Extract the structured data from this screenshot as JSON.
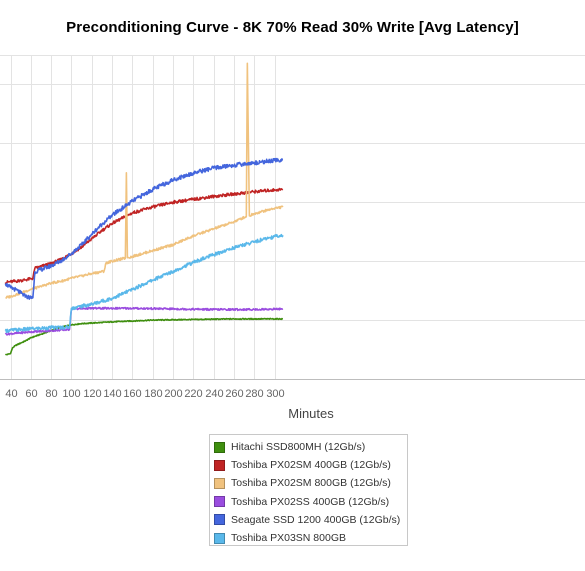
{
  "chart_data": {
    "type": "line",
    "title": "Preconditioning Curve - 8K 70% Read 30% Write [Avg Latency]",
    "xlabel": "Minutes",
    "ylabel": "",
    "xlim": [
      35,
      308
    ],
    "x_ticks": [
      40,
      60,
      80,
      100,
      120,
      140,
      160,
      180,
      200,
      220,
      240,
      260,
      280,
      300
    ],
    "grid": true,
    "legend_position": "bottom",
    "series": [
      {
        "name": "Hitachi SSD800MH (12Gb/s)",
        "color": "#3f8f0f",
        "points": [
          [
            35,
            0.41
          ],
          [
            40,
            0.43
          ],
          [
            42,
            0.53
          ],
          [
            45,
            0.57
          ],
          [
            50,
            0.61
          ],
          [
            55,
            0.65
          ],
          [
            60,
            0.7
          ],
          [
            70,
            0.76
          ],
          [
            80,
            0.82
          ],
          [
            90,
            0.88
          ],
          [
            100,
            0.92
          ],
          [
            110,
            0.94
          ],
          [
            140,
            0.97
          ],
          [
            180,
            1.0
          ],
          [
            220,
            1.01
          ],
          [
            260,
            1.02
          ],
          [
            308,
            1.02
          ]
        ]
      },
      {
        "name": "Toshiba PX02SM 400GB (12Gb/s)",
        "color": "#c02424",
        "points": [
          [
            35,
            1.64
          ],
          [
            40,
            1.65
          ],
          [
            45,
            1.66
          ],
          [
            50,
            1.67
          ],
          [
            60,
            1.7
          ],
          [
            62,
            1.71
          ],
          [
            64,
            1.88
          ],
          [
            70,
            1.91
          ],
          [
            80,
            1.96
          ],
          [
            90,
            2.03
          ],
          [
            100,
            2.13
          ],
          [
            110,
            2.24
          ],
          [
            120,
            2.38
          ],
          [
            130,
            2.52
          ],
          [
            140,
            2.64
          ],
          [
            160,
            2.82
          ],
          [
            180,
            2.92
          ],
          [
            200,
            3.0
          ],
          [
            220,
            3.05
          ],
          [
            240,
            3.1
          ],
          [
            260,
            3.14
          ],
          [
            280,
            3.18
          ],
          [
            300,
            3.21
          ],
          [
            308,
            3.22
          ]
        ]
      },
      {
        "name": "Toshiba PX02SM 800GB (12Gb/s)",
        "color": "#f0c27e",
        "points": [
          [
            35,
            1.38
          ],
          [
            40,
            1.4
          ],
          [
            50,
            1.46
          ],
          [
            60,
            1.52
          ],
          [
            70,
            1.57
          ],
          [
            80,
            1.63
          ],
          [
            90,
            1.66
          ],
          [
            100,
            1.71
          ],
          [
            110,
            1.75
          ],
          [
            120,
            1.79
          ],
          [
            132,
            1.83
          ],
          [
            134,
            1.97
          ],
          [
            140,
            2.0
          ],
          [
            150,
            2.04
          ],
          [
            153,
            2.05
          ],
          [
            154,
            3.5
          ],
          [
            155,
            2.06
          ],
          [
            160,
            2.08
          ],
          [
            180,
            2.18
          ],
          [
            200,
            2.28
          ],
          [
            220,
            2.43
          ],
          [
            240,
            2.55
          ],
          [
            260,
            2.67
          ],
          [
            272,
            2.76
          ],
          [
            273,
            5.36
          ],
          [
            275,
            2.77
          ],
          [
            280,
            2.81
          ],
          [
            300,
            2.9
          ],
          [
            308,
            2.92
          ]
        ]
      },
      {
        "name": "Toshiba PX02SS 400GB (12Gb/s)",
        "color": "#9a4ddf",
        "points": [
          [
            35,
            0.76
          ],
          [
            60,
            0.8
          ],
          [
            80,
            0.82
          ],
          [
            98,
            0.84
          ],
          [
            100,
            1.19
          ],
          [
            120,
            1.2
          ],
          [
            160,
            1.2
          ],
          [
            200,
            1.19
          ],
          [
            240,
            1.18
          ],
          [
            280,
            1.18
          ],
          [
            308,
            1.19
          ]
        ]
      },
      {
        "name": "Seagate SSD 1200 400GB (12Gb/s)",
        "color": "#4466dd",
        "points": [
          [
            35,
            1.62
          ],
          [
            40,
            1.55
          ],
          [
            45,
            1.52
          ],
          [
            50,
            1.46
          ],
          [
            55,
            1.4
          ],
          [
            60,
            1.38
          ],
          [
            62,
            1.38
          ],
          [
            64,
            1.82
          ],
          [
            70,
            1.86
          ],
          [
            80,
            1.92
          ],
          [
            90,
            2.01
          ],
          [
            100,
            2.13
          ],
          [
            110,
            2.28
          ],
          [
            120,
            2.46
          ],
          [
            130,
            2.63
          ],
          [
            140,
            2.78
          ],
          [
            160,
            3.02
          ],
          [
            180,
            3.22
          ],
          [
            200,
            3.38
          ],
          [
            220,
            3.5
          ],
          [
            240,
            3.58
          ],
          [
            260,
            3.63
          ],
          [
            280,
            3.67
          ],
          [
            300,
            3.71
          ],
          [
            308,
            3.72
          ]
        ]
      },
      {
        "name": "Toshiba PX03SN 800GB",
        "color": "#5ab8ea",
        "points": [
          [
            35,
            0.82
          ],
          [
            60,
            0.85
          ],
          [
            80,
            0.87
          ],
          [
            98,
            0.88
          ],
          [
            100,
            1.2
          ],
          [
            120,
            1.27
          ],
          [
            140,
            1.37
          ],
          [
            160,
            1.52
          ],
          [
            180,
            1.68
          ],
          [
            200,
            1.83
          ],
          [
            220,
            1.98
          ],
          [
            240,
            2.11
          ],
          [
            260,
            2.23
          ],
          [
            280,
            2.33
          ],
          [
            300,
            2.42
          ],
          [
            308,
            2.44
          ]
        ]
      }
    ]
  }
}
